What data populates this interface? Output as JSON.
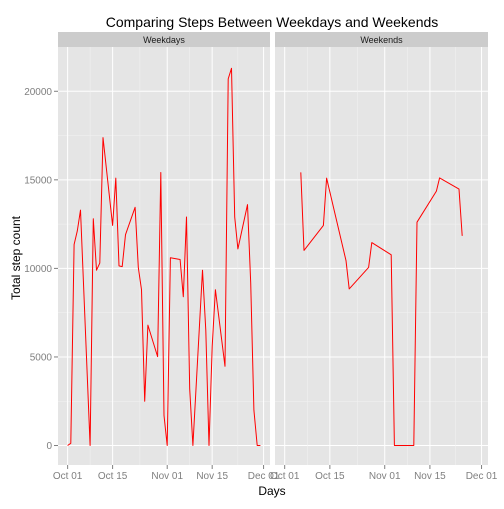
{
  "chart_data": {
    "type": "line",
    "title": "Comparing Steps Between Weekdays and Weekends",
    "xlabel": "Days",
    "ylabel": "Total step count",
    "ylim": [
      -1100,
      22500
    ],
    "xlim": [
      "2012-09-28",
      "2012-12-03"
    ],
    "x_ticks": [
      "Oct 01",
      "Oct 15",
      "Nov 01",
      "Nov 15",
      "Dec 01"
    ],
    "x_tick_dates": [
      "2012-10-01",
      "2012-10-15",
      "2012-11-01",
      "2012-11-15",
      "2012-12-01"
    ],
    "y_ticks": [
      0,
      5000,
      10000,
      15000,
      20000
    ],
    "grid": true,
    "legend": "none",
    "line_color": "#ff0000",
    "panel_background": "#e5e5e5",
    "strip_background": "#cccccc",
    "panels": [
      {
        "name": "Weekdays",
        "series": [
          {
            "x": [
              "2012-10-01",
              "2012-10-02",
              "2012-10-03",
              "2012-10-04",
              "2012-10-05",
              "2012-10-08",
              "2012-10-09",
              "2012-10-10",
              "2012-10-11",
              "2012-10-12",
              "2012-10-15",
              "2012-10-16",
              "2012-10-17",
              "2012-10-18",
              "2012-10-19",
              "2012-10-22",
              "2012-10-23",
              "2012-10-24",
              "2012-10-25",
              "2012-10-26",
              "2012-10-29",
              "2012-10-30",
              "2012-10-31",
              "2012-11-01",
              "2012-11-02",
              "2012-11-05",
              "2012-11-06",
              "2012-11-07",
              "2012-11-08",
              "2012-11-09",
              "2012-11-12",
              "2012-11-13",
              "2012-11-14",
              "2012-11-15",
              "2012-11-16",
              "2012-11-19",
              "2012-11-20",
              "2012-11-21",
              "2012-11-22",
              "2012-11-23",
              "2012-11-26",
              "2012-11-27",
              "2012-11-28",
              "2012-11-29",
              "2012-11-30"
            ],
            "values": [
              0,
              126,
              11352,
              12116,
              13294,
              0,
              12800,
              9900,
              10300,
              17382,
              12426,
              15098,
              10139,
              10100,
              11900,
              13452,
              10056,
              8800,
              2500,
              6800,
              5018,
              15414,
              1700,
              0,
              10600,
              10500,
              8400,
              12900,
              3200,
              0,
              9900,
              6500,
              0,
              5600,
              8800,
              4470,
              20700,
              21300,
              12900,
              11100,
              13600,
              9200,
              2000,
              0,
              0
            ]
          }
        ]
      },
      {
        "name": "Weekends",
        "series": [
          {
            "x": [
              "2012-10-06",
              "2012-10-07",
              "2012-10-13",
              "2012-10-14",
              "2012-10-20",
              "2012-10-21",
              "2012-10-27",
              "2012-10-28",
              "2012-11-03",
              "2012-11-04",
              "2012-11-10",
              "2012-11-11",
              "2012-11-17",
              "2012-11-18",
              "2012-11-24",
              "2012-11-25"
            ],
            "values": [
              15420,
              11015,
              12426,
              15098,
              10439,
              8840,
              10056,
              11458,
              10765,
              0,
              0,
              12608,
              14366,
              15111,
              14478,
              11834
            ]
          }
        ]
      }
    ]
  }
}
